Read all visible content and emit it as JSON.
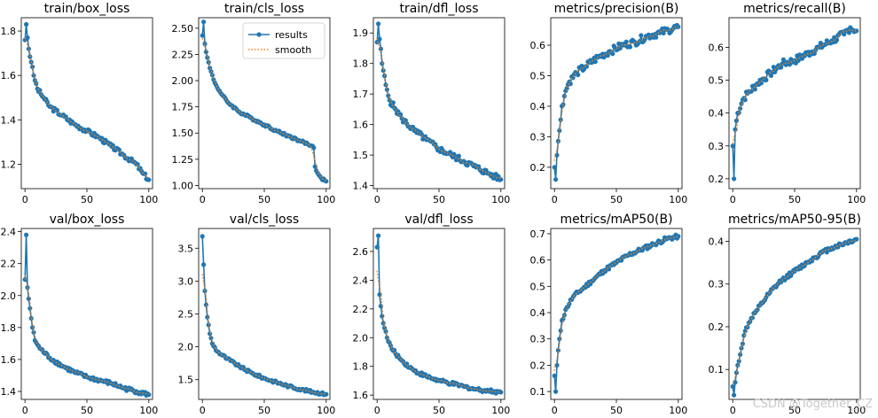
{
  "chart_data": [
    {
      "type": "line",
      "title": "train/box_loss",
      "xlim": [
        -3,
        103
      ],
      "ylim": [
        1.09,
        1.86
      ],
      "xticks": [
        0,
        50,
        100
      ],
      "yticks": [
        1.2,
        1.4,
        1.6,
        1.8
      ],
      "ytick_labels": [
        "1.2",
        "1.4",
        "1.6",
        "1.8"
      ],
      "keyframes": [
        [
          0,
          1.76
        ],
        [
          1,
          1.83
        ],
        [
          2,
          1.77
        ],
        [
          3,
          1.72
        ],
        [
          5,
          1.66
        ],
        [
          7,
          1.6
        ],
        [
          10,
          1.54
        ],
        [
          15,
          1.5
        ],
        [
          20,
          1.46
        ],
        [
          30,
          1.42
        ],
        [
          40,
          1.38
        ],
        [
          50,
          1.35
        ],
        [
          60,
          1.32
        ],
        [
          70,
          1.28
        ],
        [
          80,
          1.24
        ],
        [
          90,
          1.2
        ],
        [
          95,
          1.16
        ],
        [
          100,
          1.13
        ]
      ],
      "noise": 0.01
    },
    {
      "type": "line",
      "title": "train/cls_loss",
      "xlim": [
        -3,
        103
      ],
      "ylim": [
        0.97,
        2.6
      ],
      "xticks": [
        0,
        50,
        100
      ],
      "yticks": [
        1.0,
        1.25,
        1.5,
        1.75,
        2.0,
        2.25,
        2.5
      ],
      "ytick_labels": [
        "1.00",
        "1.25",
        "1.50",
        "1.75",
        "2.00",
        "2.25",
        "2.50"
      ],
      "keyframes": [
        [
          0,
          2.43
        ],
        [
          1,
          2.56
        ],
        [
          2,
          2.35
        ],
        [
          4,
          2.22
        ],
        [
          6,
          2.12
        ],
        [
          10,
          1.98
        ],
        [
          15,
          1.88
        ],
        [
          20,
          1.8
        ],
        [
          30,
          1.7
        ],
        [
          40,
          1.64
        ],
        [
          50,
          1.58
        ],
        [
          60,
          1.52
        ],
        [
          70,
          1.47
        ],
        [
          80,
          1.42
        ],
        [
          88,
          1.38
        ],
        [
          90,
          1.36
        ],
        [
          91,
          1.18
        ],
        [
          93,
          1.12
        ],
        [
          96,
          1.07
        ],
        [
          100,
          1.04
        ]
      ],
      "noise": 0.012,
      "legend": {
        "entries": [
          "results",
          "smooth"
        ],
        "placement": "top-right"
      }
    },
    {
      "type": "line",
      "title": "train/dfl_loss",
      "xlim": [
        -3,
        103
      ],
      "ylim": [
        1.39,
        1.95
      ],
      "xticks": [
        0,
        50,
        100
      ],
      "yticks": [
        1.4,
        1.5,
        1.6,
        1.7,
        1.8,
        1.9
      ],
      "ytick_labels": [
        "1.4",
        "1.5",
        "1.6",
        "1.7",
        "1.8",
        "1.9"
      ],
      "keyframes": [
        [
          0,
          1.87
        ],
        [
          1,
          1.93
        ],
        [
          2,
          1.88
        ],
        [
          4,
          1.8
        ],
        [
          7,
          1.73
        ],
        [
          10,
          1.68
        ],
        [
          15,
          1.65
        ],
        [
          20,
          1.62
        ],
        [
          30,
          1.58
        ],
        [
          40,
          1.55
        ],
        [
          50,
          1.52
        ],
        [
          60,
          1.5
        ],
        [
          70,
          1.48
        ],
        [
          80,
          1.46
        ],
        [
          90,
          1.44
        ],
        [
          95,
          1.43
        ],
        [
          100,
          1.42
        ]
      ],
      "noise": 0.01
    },
    {
      "type": "line",
      "title": "metrics/precision(B)",
      "xlim": [
        -3,
        103
      ],
      "ylim": [
        0.13,
        0.69
      ],
      "xticks": [
        0,
        50,
        100
      ],
      "yticks": [
        0.2,
        0.3,
        0.4,
        0.5,
        0.6
      ],
      "ytick_labels": [
        "0.2",
        "0.3",
        "0.4",
        "0.5",
        "0.6"
      ],
      "keyframes": [
        [
          0,
          0.2
        ],
        [
          1,
          0.16
        ],
        [
          2,
          0.24
        ],
        [
          4,
          0.32
        ],
        [
          6,
          0.4
        ],
        [
          9,
          0.45
        ],
        [
          12,
          0.48
        ],
        [
          18,
          0.51
        ],
        [
          25,
          0.53
        ],
        [
          35,
          0.56
        ],
        [
          45,
          0.58
        ],
        [
          55,
          0.6
        ],
        [
          65,
          0.61
        ],
        [
          75,
          0.63
        ],
        [
          85,
          0.64
        ],
        [
          92,
          0.65
        ],
        [
          100,
          0.66
        ]
      ],
      "noise": 0.012
    },
    {
      "type": "line",
      "title": "metrics/recall(B)",
      "xlim": [
        -3,
        103
      ],
      "ylim": [
        0.17,
        0.69
      ],
      "xticks": [
        0,
        50,
        100
      ],
      "yticks": [
        0.2,
        0.3,
        0.4,
        0.5,
        0.6
      ],
      "ytick_labels": [
        "0.2",
        "0.3",
        "0.4",
        "0.5",
        "0.6"
      ],
      "keyframes": [
        [
          0,
          0.3
        ],
        [
          1,
          0.2
        ],
        [
          2,
          0.35
        ],
        [
          4,
          0.4
        ],
        [
          8,
          0.44
        ],
        [
          12,
          0.46
        ],
        [
          20,
          0.49
        ],
        [
          30,
          0.52
        ],
        [
          40,
          0.55
        ],
        [
          50,
          0.56
        ],
        [
          60,
          0.58
        ],
        [
          70,
          0.6
        ],
        [
          80,
          0.62
        ],
        [
          90,
          0.64
        ],
        [
          95,
          0.66
        ],
        [
          100,
          0.65
        ]
      ],
      "noise": 0.012
    },
    {
      "type": "line",
      "title": "val/box_loss",
      "xlim": [
        -3,
        103
      ],
      "ylim": [
        1.35,
        2.42
      ],
      "xticks": [
        0,
        50,
        100
      ],
      "yticks": [
        1.4,
        1.6,
        1.8,
        2.0,
        2.2,
        2.4
      ],
      "ytick_labels": [
        "1.4",
        "1.6",
        "1.8",
        "2.0",
        "2.2",
        "2.4"
      ],
      "keyframes": [
        [
          0,
          2.1
        ],
        [
          1,
          2.38
        ],
        [
          2,
          2.05
        ],
        [
          3,
          1.98
        ],
        [
          4,
          1.92
        ],
        [
          6,
          1.8
        ],
        [
          8,
          1.72
        ],
        [
          12,
          1.67
        ],
        [
          20,
          1.61
        ],
        [
          30,
          1.56
        ],
        [
          40,
          1.52
        ],
        [
          50,
          1.49
        ],
        [
          60,
          1.47
        ],
        [
          70,
          1.45
        ],
        [
          80,
          1.42
        ],
        [
          90,
          1.4
        ],
        [
          100,
          1.38
        ]
      ],
      "noise": 0.012
    },
    {
      "type": "line",
      "title": "val/cls_loss",
      "xlim": [
        -3,
        103
      ],
      "ylim": [
        1.2,
        3.8
      ],
      "xticks": [
        0,
        50,
        100
      ],
      "yticks": [
        1.5,
        2.0,
        2.5,
        3.0,
        3.5
      ],
      "ytick_labels": [
        "1.5",
        "2.0",
        "2.5",
        "3.0",
        "3.5"
      ],
      "keyframes": [
        [
          0,
          3.68
        ],
        [
          1,
          3.25
        ],
        [
          2,
          2.85
        ],
        [
          4,
          2.45
        ],
        [
          6,
          2.2
        ],
        [
          8,
          2.05
        ],
        [
          12,
          1.93
        ],
        [
          20,
          1.82
        ],
        [
          30,
          1.7
        ],
        [
          40,
          1.6
        ],
        [
          50,
          1.52
        ],
        [
          60,
          1.46
        ],
        [
          70,
          1.4
        ],
        [
          80,
          1.35
        ],
        [
          90,
          1.31
        ],
        [
          100,
          1.28
        ]
      ],
      "noise": 0.02
    },
    {
      "type": "line",
      "title": "val/dfl_loss",
      "xlim": [
        -3,
        103
      ],
      "ylim": [
        1.57,
        2.76
      ],
      "xticks": [
        0,
        50,
        100
      ],
      "yticks": [
        1.6,
        1.8,
        2.0,
        2.2,
        2.4,
        2.6
      ],
      "ytick_labels": [
        "1.6",
        "1.8",
        "2.0",
        "2.2",
        "2.4",
        "2.6"
      ],
      "keyframes": [
        [
          0,
          2.63
        ],
        [
          1,
          2.71
        ],
        [
          2,
          2.3
        ],
        [
          3,
          2.22
        ],
        [
          5,
          2.1
        ],
        [
          8,
          2.0
        ],
        [
          12,
          1.92
        ],
        [
          20,
          1.84
        ],
        [
          30,
          1.77
        ],
        [
          40,
          1.73
        ],
        [
          50,
          1.7
        ],
        [
          60,
          1.68
        ],
        [
          70,
          1.66
        ],
        [
          80,
          1.64
        ],
        [
          90,
          1.63
        ],
        [
          100,
          1.62
        ]
      ],
      "noise": 0.012
    },
    {
      "type": "line",
      "title": "metrics/mAP50(B)",
      "xlim": [
        -3,
        103
      ],
      "ylim": [
        0.07,
        0.72
      ],
      "xticks": [
        0,
        50,
        100
      ],
      "yticks": [
        0.1,
        0.2,
        0.3,
        0.4,
        0.5,
        0.6,
        0.7
      ],
      "ytick_labels": [
        "0.1",
        "0.2",
        "0.3",
        "0.4",
        "0.5",
        "0.6",
        "0.7"
      ],
      "keyframes": [
        [
          0,
          0.16
        ],
        [
          1,
          0.1
        ],
        [
          2,
          0.2
        ],
        [
          4,
          0.3
        ],
        [
          6,
          0.37
        ],
        [
          10,
          0.42
        ],
        [
          15,
          0.46
        ],
        [
          20,
          0.48
        ],
        [
          30,
          0.52
        ],
        [
          40,
          0.56
        ],
        [
          50,
          0.59
        ],
        [
          60,
          0.62
        ],
        [
          70,
          0.64
        ],
        [
          80,
          0.66
        ],
        [
          90,
          0.68
        ],
        [
          100,
          0.69
        ]
      ],
      "noise": 0.008
    },
    {
      "type": "line",
      "title": "metrics/mAP50-95(B)",
      "xlim": [
        -3,
        103
      ],
      "ylim": [
        0.03,
        0.43
      ],
      "xticks": [
        0,
        50,
        100
      ],
      "yticks": [
        0.1,
        0.2,
        0.3,
        0.4
      ],
      "ytick_labels": [
        "0.1",
        "0.2",
        "0.3",
        "0.4"
      ],
      "keyframes": [
        [
          0,
          0.06
        ],
        [
          1,
          0.04
        ],
        [
          2,
          0.07
        ],
        [
          4,
          0.11
        ],
        [
          7,
          0.15
        ],
        [
          10,
          0.19
        ],
        [
          15,
          0.22
        ],
        [
          20,
          0.24
        ],
        [
          30,
          0.28
        ],
        [
          40,
          0.31
        ],
        [
          50,
          0.33
        ],
        [
          60,
          0.35
        ],
        [
          70,
          0.37
        ],
        [
          80,
          0.385
        ],
        [
          90,
          0.395
        ],
        [
          100,
          0.405
        ]
      ],
      "noise": 0.005
    }
  ],
  "colors": {
    "results": "#1f77b4",
    "smooth": "#ff7f0e",
    "axis": "#000000",
    "watermark": "#c8c8c8"
  },
  "watermark": "CSDN @Together_CZ"
}
